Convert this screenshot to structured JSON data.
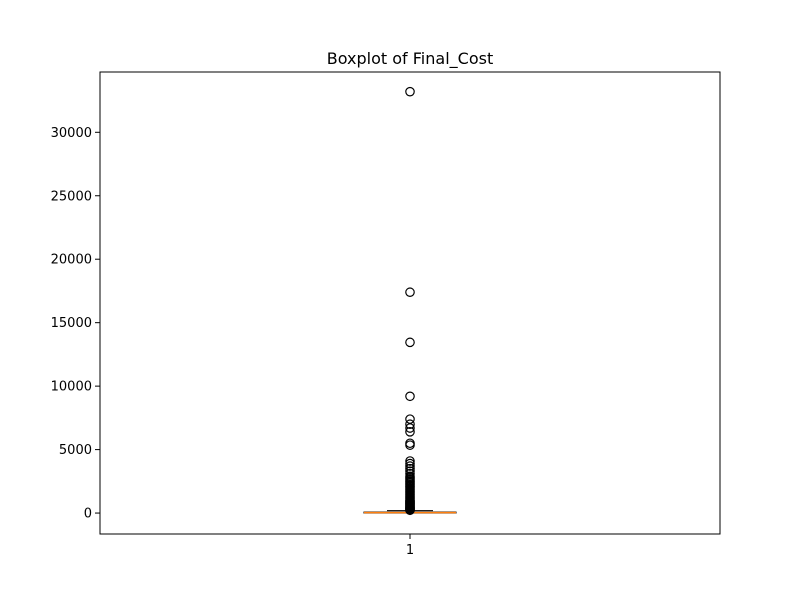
{
  "chart_data": {
    "type": "boxplot",
    "title": "Boxplot of Final_Cost",
    "xlabel": "",
    "ylabel": "",
    "categories": [
      "1"
    ],
    "ylim": [
      -1650,
      34750
    ],
    "yticks": [
      0,
      5000,
      10000,
      15000,
      20000,
      25000,
      30000
    ],
    "ytick_labels": [
      "0",
      "5000",
      "10000",
      "15000",
      "20000",
      "25000",
      "30000"
    ],
    "grid": false,
    "box": {
      "q1": 5,
      "median": 30,
      "q3": 80,
      "whisker_low": 0,
      "whisker_high": 190
    },
    "outliers": [
      33200,
      17400,
      13450,
      9200,
      7400,
      7000,
      6700,
      6400,
      5500,
      5350,
      4100,
      3900,
      3700,
      3500,
      3300,
      3100,
      2900,
      2800,
      2700,
      2600,
      2500,
      2400,
      2300,
      2200,
      2100,
      2000,
      1900,
      1800,
      1700,
      1600,
      1500,
      1400,
      1300,
      1200,
      1100,
      1000,
      950,
      900,
      850,
      800,
      750,
      700,
      650,
      600,
      550,
      500,
      450,
      400,
      350,
      300,
      250,
      220
    ],
    "colors": {
      "box": "#000000",
      "median": "#ff7f0e",
      "outlier": "#000000"
    }
  }
}
